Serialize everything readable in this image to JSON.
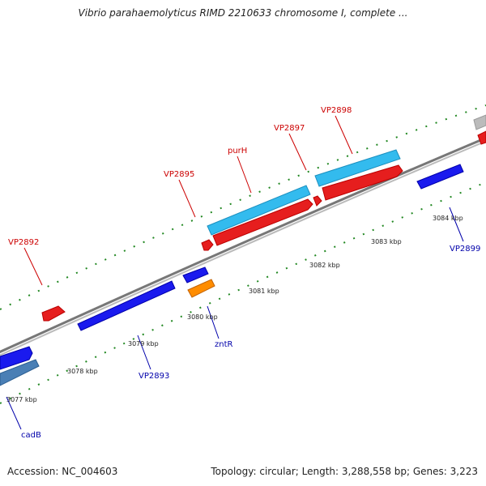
{
  "title": "Vibrio parahaemolyticus RIMD 2210633 chromosome I, complete ...",
  "footer": {
    "accession": "Accession: NC_004603",
    "summary": "Topology: circular; Length: 3,288,558 bp; Genes: 3,223"
  },
  "scale_labels": [
    "3077 kbp",
    "3078 kbp",
    "3079 kbp",
    "3080 kbp",
    "3081 kbp",
    "3082 kbp",
    "3083 kbp",
    "3084 kbp"
  ],
  "genes_forward": [
    {
      "label": "VP2892",
      "color": "#cc0000"
    },
    {
      "label": "VP2895",
      "color": "#cc0000"
    },
    {
      "label": "purH",
      "color": "#cc0000"
    },
    {
      "label": "VP2897",
      "color": "#cc0000"
    },
    {
      "label": "VP2898",
      "color": "#cc0000"
    }
  ],
  "genes_reverse": [
    {
      "label": "cadB",
      "color": "#0000aa"
    },
    {
      "label": "VP2893",
      "color": "#0000aa"
    },
    {
      "label": "zntR",
      "color": "#0000aa"
    },
    {
      "label": "VP2899",
      "color": "#0000aa"
    }
  ],
  "colors": {
    "cds_forward": "#ff1a1a",
    "cds_reverse": "#1a1aee",
    "feature_cyan": "#33bbee",
    "feature_steel": "#4a7fb5",
    "feature_orange": "#ff8c00",
    "feature_gray": "#bbbbbb",
    "tick": "#228822",
    "backbone": "#777777"
  }
}
